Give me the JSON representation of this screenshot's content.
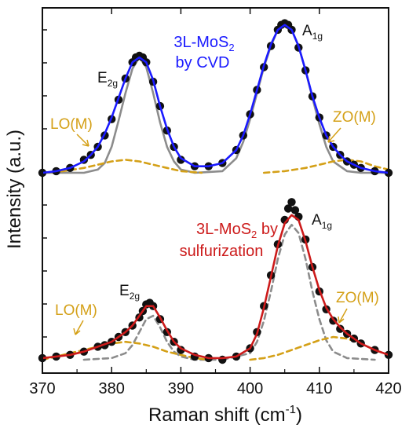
{
  "chart_data": {
    "type": "line",
    "xlabel": "Raman shift (cm",
    "xlabel_sup": "-1",
    "xlabel_end": ")",
    "ylabel": "Intensity (a.u.)",
    "xlim": [
      370,
      420
    ],
    "ylim": [
      0,
      2.1
    ],
    "xticks": [
      "370",
      "380",
      "390",
      "400",
      "410",
      "420"
    ],
    "panels": [
      {
        "id": "cvd",
        "legend": {
          "line1_pre": "3L-MoS",
          "sub": "2",
          "line1_post": "",
          "line2": "by CVD",
          "color": "#1a1aff"
        },
        "peak_labels": [
          {
            "main": "E",
            "sub": "2g",
            "color": "#111111"
          },
          {
            "main": "A",
            "sub": "1g",
            "color": "#111111"
          },
          {
            "main": "LO(M)",
            "sub": "",
            "color": "#d4a017"
          },
          {
            "main": "ZO(M)",
            "sub": "",
            "color": "#d4a017"
          }
        ],
        "series": [
          {
            "role": "data",
            "style": "markers",
            "color": "#111111",
            "x": [
              370,
              372,
              374,
              376,
              377,
              378,
              379,
              380,
              381,
              382,
              383,
              383.5,
              384,
              384.5,
              385,
              386,
              387,
              388,
              389,
              390,
              392,
              394,
              396,
              398,
              399,
              400,
              401,
              402,
              403,
              404,
              404.5,
              405,
              405.5,
              406,
              407,
              408,
              409,
              410,
              411,
              412,
              413,
              414,
              415,
              416,
              418,
              420
            ],
            "y": [
              1.15,
              1.16,
              1.18,
              1.23,
              1.26,
              1.31,
              1.38,
              1.48,
              1.6,
              1.73,
              1.83,
              1.86,
              1.87,
              1.86,
              1.83,
              1.71,
              1.56,
              1.41,
              1.31,
              1.23,
              1.19,
              1.19,
              1.21,
              1.29,
              1.38,
              1.51,
              1.66,
              1.8,
              1.93,
              2.03,
              2.06,
              2.07,
              2.06,
              2.03,
              1.92,
              1.78,
              1.62,
              1.49,
              1.38,
              1.31,
              1.26,
              1.22,
              1.2,
              1.18,
              1.16,
              1.15
            ]
          },
          {
            "role": "fit",
            "style": "solid",
            "color": "#1a1aff",
            "x": [
              370,
              372,
              374,
              376,
              377,
              378,
              379,
              380,
              381,
              382,
              383,
              384,
              385,
              386,
              387,
              388,
              389,
              390,
              392,
              394,
              396,
              398,
              399,
              400,
              401,
              402,
              403,
              404,
              405,
              406,
              407,
              408,
              409,
              410,
              411,
              412,
              413,
              414,
              415,
              416,
              418,
              420
            ],
            "y": [
              1.15,
              1.16,
              1.18,
              1.22,
              1.26,
              1.31,
              1.39,
              1.49,
              1.61,
              1.73,
              1.83,
              1.86,
              1.83,
              1.72,
              1.56,
              1.42,
              1.31,
              1.24,
              1.19,
              1.19,
              1.21,
              1.29,
              1.38,
              1.51,
              1.66,
              1.81,
              1.94,
              2.03,
              2.06,
              2.03,
              1.93,
              1.78,
              1.62,
              1.49,
              1.38,
              1.31,
              1.26,
              1.22,
              1.2,
              1.18,
              1.16,
              1.15
            ]
          },
          {
            "role": "component",
            "style": "solid",
            "color": "#8c8c8c",
            "x": [
              370,
              376,
              378,
              379,
              380,
              381,
              382,
              383,
              384,
              385,
              386,
              387,
              388,
              389,
              390,
              392,
              396,
              398,
              399,
              400,
              401,
              402,
              403,
              404,
              405,
              406,
              407,
              408,
              409,
              410,
              411,
              412,
              414,
              416,
              420
            ],
            "y": [
              1.15,
              1.15,
              1.17,
              1.21,
              1.31,
              1.47,
              1.64,
              1.79,
              1.86,
              1.8,
              1.64,
              1.46,
              1.31,
              1.22,
              1.17,
              1.15,
              1.16,
              1.24,
              1.34,
              1.48,
              1.64,
              1.8,
              1.93,
              2.03,
              2.06,
              2.03,
              1.93,
              1.78,
              1.61,
              1.45,
              1.31,
              1.22,
              1.16,
              1.15,
              1.15
            ]
          },
          {
            "role": "component",
            "style": "dashed",
            "color": "#d4a017",
            "x": [
              370,
              373,
              376,
              378,
              380,
              382,
              384,
              386,
              388,
              390,
              393
            ],
            "y": [
              1.15,
              1.16,
              1.18,
              1.2,
              1.22,
              1.23,
              1.22,
              1.2,
              1.18,
              1.16,
              1.15
            ]
          },
          {
            "role": "component",
            "style": "dashed",
            "color": "#d4a017",
            "x": [
              402,
              405,
              408,
              410,
              412,
              414,
              416,
              418,
              420
            ],
            "y": [
              1.15,
              1.16,
              1.18,
              1.2,
              1.22,
              1.23,
              1.22,
              1.19,
              1.17
            ]
          }
        ]
      },
      {
        "id": "sulfurization",
        "legend": {
          "line1_pre": "3L-MoS",
          "sub": "2",
          "line1_post": " by",
          "line2": "sulfurization",
          "color": "#cc1a1a"
        },
        "peak_labels": [
          {
            "main": "E",
            "sub": "2g",
            "color": "#111111"
          },
          {
            "main": "A",
            "sub": "1g",
            "color": "#111111"
          },
          {
            "main": "LO(M)",
            "sub": "",
            "color": "#d4a017"
          },
          {
            "main": "ZO(M)",
            "sub": "",
            "color": "#d4a017"
          }
        ],
        "series": [
          {
            "role": "data",
            "style": "markers",
            "color": "#111111",
            "x": [
              370,
              372,
              374,
              376,
              378,
              379,
              380,
              381,
              382,
              383,
              384,
              384.5,
              385,
              385.5,
              386,
              387,
              388,
              389,
              390,
              392,
              394,
              396,
              398,
              400,
              401,
              402,
              403,
              404,
              405,
              405.5,
              406,
              406.5,
              407,
              408,
              409,
              410,
              411,
              412,
              413,
              414,
              415,
              416,
              418,
              420
            ],
            "y": [
              0.01,
              0.02,
              0.03,
              0.05,
              0.08,
              0.09,
              0.11,
              0.14,
              0.17,
              0.21,
              0.26,
              0.3,
              0.34,
              0.35,
              0.33,
              0.25,
              0.17,
              0.11,
              0.06,
              0.02,
              0.01,
              0.0,
              0.02,
              0.07,
              0.17,
              0.33,
              0.52,
              0.71,
              0.86,
              0.93,
              0.97,
              0.92,
              0.88,
              0.74,
              0.57,
              0.42,
              0.31,
              0.24,
              0.19,
              0.16,
              0.13,
              0.1,
              0.06,
              0.03
            ]
          },
          {
            "role": "fit",
            "style": "solid",
            "color": "#cc1a1a",
            "x": [
              370,
              372,
              374,
              376,
              378,
              380,
              381,
              382,
              383,
              384,
              385,
              386,
              387,
              388,
              389,
              390,
              392,
              394,
              396,
              398,
              400,
              401,
              402,
              403,
              404,
              405,
              406,
              407,
              408,
              409,
              410,
              411,
              412,
              413,
              414,
              415,
              416,
              418,
              420
            ],
            "y": [
              0.01,
              0.02,
              0.03,
              0.05,
              0.08,
              0.11,
              0.14,
              0.17,
              0.21,
              0.27,
              0.33,
              0.33,
              0.26,
              0.18,
              0.11,
              0.07,
              0.03,
              0.01,
              0.01,
              0.02,
              0.07,
              0.16,
              0.32,
              0.51,
              0.7,
              0.84,
              0.89,
              0.86,
              0.73,
              0.57,
              0.43,
              0.32,
              0.25,
              0.2,
              0.16,
              0.13,
              0.1,
              0.06,
              0.03
            ]
          },
          {
            "role": "component",
            "style": "dashed",
            "color": "#8c8c8c",
            "x": [
              376,
              380,
              382,
              383,
              384,
              385,
              386,
              387,
              388,
              389,
              390,
              392,
              396
            ],
            "y": [
              0.0,
              0.01,
              0.04,
              0.09,
              0.17,
              0.25,
              0.27,
              0.2,
              0.11,
              0.05,
              0.02,
              0.0,
              0.0
            ]
          },
          {
            "role": "component",
            "style": "dashed",
            "color": "#8c8c8c",
            "x": [
              396,
              400,
              401,
              402,
              403,
              404,
              405,
              406,
              407,
              408,
              409,
              410,
              411,
              412,
              414,
              418
            ],
            "y": [
              0.0,
              0.04,
              0.11,
              0.24,
              0.42,
              0.62,
              0.77,
              0.83,
              0.78,
              0.62,
              0.42,
              0.25,
              0.12,
              0.05,
              0.01,
              0.0
            ]
          },
          {
            "role": "component",
            "style": "dashed",
            "color": "#d4a017",
            "x": [
              370,
              372,
              374,
              376,
              378,
              380,
              382,
              384,
              386,
              388,
              390,
              392,
              394
            ],
            "y": [
              0.0,
              0.02,
              0.04,
              0.06,
              0.08,
              0.1,
              0.11,
              0.1,
              0.08,
              0.05,
              0.03,
              0.01,
              0.0
            ]
          },
          {
            "role": "component",
            "style": "dashed",
            "color": "#d4a017",
            "x": [
              400,
              402,
              404,
              406,
              408,
              410,
              412,
              414,
              416,
              418,
              420
            ],
            "y": [
              0.0,
              0.01,
              0.03,
              0.06,
              0.09,
              0.12,
              0.14,
              0.13,
              0.1,
              0.06,
              0.03
            ]
          }
        ]
      }
    ]
  }
}
